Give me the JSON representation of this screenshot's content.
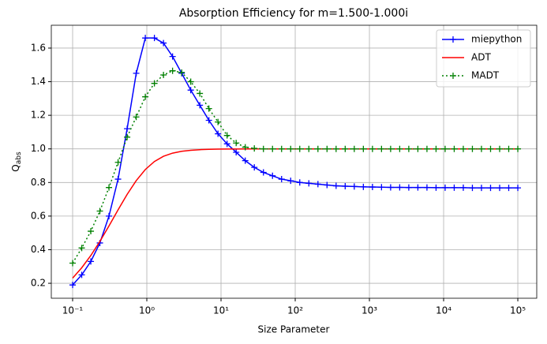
{
  "chart_data": {
    "type": "line",
    "title": "Absorption Efficiency for m=1.500-1.000i",
    "xlabel": "Size Parameter",
    "ylabel": [
      "Q",
      "abs"
    ],
    "xscale": "log",
    "grid": true,
    "legend": "upper right",
    "x": [
      0.1,
      0.1326,
      0.1758,
      0.233,
      0.3089,
      0.4095,
      0.5429,
      0.7197,
      0.9542,
      1.265,
      1.677,
      2.223,
      2.947,
      3.907,
      5.179,
      6.866,
      9.103,
      12.07,
      16.0,
      21.21,
      28.12,
      37.28,
      49.42,
      65.51,
      86.85,
      115.1,
      152.6,
      202.4,
      268.3,
      355.6,
      471.5,
      625.1,
      828.6,
      1099,
      1456,
      1931,
      2560,
      3393,
      4498,
      5964,
      7906,
      10481,
      13895,
      18421,
      24421,
      32375,
      42919,
      56899,
      75431,
      100000
    ],
    "series": [
      {
        "name": "miepython",
        "color": "#0000ff",
        "marker": "+",
        "linestyle": "solid",
        "values": [
          0.19,
          0.25,
          0.33,
          0.44,
          0.6,
          0.82,
          1.12,
          1.45,
          1.66,
          1.66,
          1.63,
          1.55,
          1.45,
          1.35,
          1.26,
          1.17,
          1.09,
          1.03,
          0.98,
          0.93,
          0.89,
          0.86,
          0.84,
          0.82,
          0.81,
          0.8,
          0.795,
          0.79,
          0.785,
          0.78,
          0.778,
          0.776,
          0.774,
          0.773,
          0.772,
          0.771,
          0.771,
          0.77,
          0.77,
          0.77,
          0.769,
          0.769,
          0.769,
          0.769,
          0.768,
          0.768,
          0.768,
          0.768,
          0.768,
          0.768
        ]
      },
      {
        "name": "ADT",
        "color": "#ff0000",
        "marker": null,
        "linestyle": "solid",
        "values": [
          0.2306,
          0.2924,
          0.3653,
          0.4493,
          0.5413,
          0.6369,
          0.7293,
          0.8112,
          0.8772,
          0.9249,
          0.956,
          0.9747,
          0.9856,
          0.9918,
          0.9953,
          0.9973,
          0.9985,
          0.9991,
          0.9995,
          0.9997,
          0.9998,
          0.9999,
          0.9999,
          1,
          1,
          1,
          1,
          1,
          1,
          1,
          1,
          1,
          1,
          1,
          1,
          1,
          1,
          1,
          1,
          1,
          1,
          1,
          1,
          1,
          1,
          1,
          1,
          1,
          1,
          1
        ]
      },
      {
        "name": "MADT",
        "color": "#008000",
        "marker": "+",
        "linestyle": "dotted",
        "values": [
          0.32,
          0.41,
          0.51,
          0.63,
          0.77,
          0.92,
          1.07,
          1.19,
          1.31,
          1.39,
          1.44,
          1.465,
          1.455,
          1.4,
          1.33,
          1.24,
          1.16,
          1.08,
          1.035,
          1.01,
          1.003,
          1,
          1,
          1,
          1,
          1,
          1,
          1,
          1,
          1,
          1,
          1,
          1,
          1,
          1,
          1,
          1,
          1,
          1,
          1,
          1,
          1,
          1,
          1,
          1,
          1,
          1,
          1,
          1,
          1
        ]
      }
    ],
    "xlim": [
      0.0516,
      179900
    ],
    "xticks": [
      {
        "value": 0.1,
        "label": "10⁻¹"
      },
      {
        "value": 1,
        "label": "10⁰"
      },
      {
        "value": 10,
        "label": "10¹"
      },
      {
        "value": 100,
        "label": "10²"
      },
      {
        "value": 1000,
        "label": "10³"
      },
      {
        "value": 10000,
        "label": "10⁴"
      },
      {
        "value": 100000,
        "label": "10⁵"
      }
    ],
    "ylim": [
      0.111,
      1.736
    ],
    "yticks": [
      {
        "value": 0.2,
        "label": "0.2"
      },
      {
        "value": 0.4,
        "label": "0.4"
      },
      {
        "value": 0.6,
        "label": "0.6"
      },
      {
        "value": 0.8,
        "label": "0.8"
      },
      {
        "value": 1.0,
        "label": "1.0"
      },
      {
        "value": 1.2,
        "label": "1.2"
      },
      {
        "value": 1.4,
        "label": "1.4"
      },
      {
        "value": 1.6,
        "label": "1.6"
      }
    ]
  }
}
